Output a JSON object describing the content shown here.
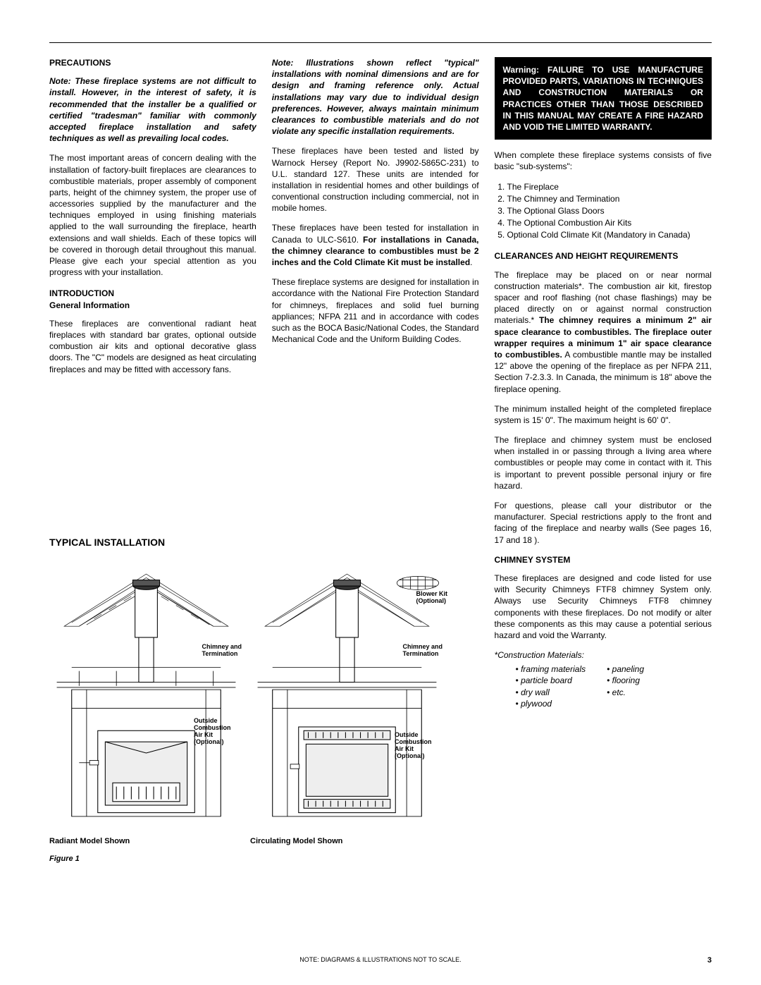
{
  "col1": {
    "precautions_heading": "PRECAUTIONS",
    "precautions_note": "Note: These fireplace systems are not difficult to install. However, in the interest of safety, it is recommended that the installer be a qualified or certified \"tradesman\" familiar with commonly accepted fireplace installation and safety techniques as well as prevailing local codes.",
    "precautions_body": "The most important areas of concern dealing with the installation of factory-built fireplaces are clearances to combustible materials, proper assembly of component parts, height of the chimney system, the proper use of accessories supplied by the manufacturer and the techniques employed in using finishing materials applied to the wall surrounding the fireplace, hearth extensions and wall shields. Each of these topics will be covered in thorough detail throughout this manual. Please give each your special attention as you progress with your installation.",
    "intro_heading_1": "INTRODUCTION",
    "intro_heading_2": "General Information",
    "intro_body": "These fireplaces are conventional radiant heat fireplaces with standard bar grates, optional outside combustion air kits and optional decorative glass doors. The \"C\" models are designed as heat circulating fireplaces and may be fitted with accessory fans."
  },
  "col2": {
    "note": "Note: Illustrations shown reflect \"typical\" installations with nominal dimensions and are for design and framing reference only. Actual installations may vary due to individual design preferences. However, always maintain minimum clearances to combustible materials and do not violate any specific installation requirements.",
    "p1": "These fireplaces have been tested and listed by Warnock Hersey (Report No. J9902-5865C-231) to U.L. standard 127. These units are intended for installation in residential homes and other buildings of conventional construction including commercial, not in mobile homes.",
    "p2_a": "These fireplaces have been tested for installation in Canada to ULC-S610. ",
    "p2_b": "For installations in Canada, the chimney clearance to combustibles must be 2 inches and the Cold Climate Kit must be installed",
    "p3": "These fireplace systems are designed for installation in accordance with the National Fire Protection Standard for chimneys, fireplaces and solid fuel burning appliances; NFPA 211 and in accordance with codes such as the BOCA Basic/National Codes, the Standard Mechanical Code and the Uniform Building Codes."
  },
  "col3": {
    "warning": "Warning: FAILURE TO USE MANUFACTURE PROVIDED PARTS, VARIATIONS IN TECHNIQUES AND CONSTRUCTION MATERIALS OR PRACTICES OTHER THAN THOSE DESCRIBED IN THIS MANUAL MAY CREATE A FIRE HAZARD AND VOID THE LIMITED WARRANTY.",
    "subsystems_intro": "When complete these fireplace systems consists of five basic \"sub-systems\":",
    "subsystems": [
      "The Fireplace",
      "The Chimney and Termination",
      "The Optional Glass Doors",
      "The Optional Combustion Air Kits",
      "Optional Cold Climate Kit (Mandatory in Canada)"
    ],
    "clearances_heading": "CLEARANCES AND HEIGHT REQUIREMENTS",
    "clearances_p1_a": "The fireplace may be placed on or near normal construction materials*. The combustion air kit, firestop spacer and roof flashing (not chase flashings) may be placed directly on or against normal construction materials.* ",
    "clearances_p1_b": "The chimney requires a minimum 2\" air space clearance to combustibles. The fireplace outer wrapper requires a minimum 1\" air space clearance to combustibles.",
    "clearances_p1_c": " A combustible mantle may be installed 12\" above the opening of the fireplace as per NFPA 211, Section 7-2.3.3. In Canada, the minimum is 18\" above the fireplace opening.",
    "clearances_p2": "The minimum installed height of the completed fireplace system is 15' 0\". The maximum height is 60' 0\".",
    "clearances_p3": "The fireplace and chimney system must be enclosed when installed in or passing through a living area where combustibles or people may come in contact with it. This is important to prevent possible personal injury or fire hazard.",
    "clearances_p4": "For questions, please call your distributor or the manufacturer. Special restrictions apply to the front and facing of the fireplace and nearby walls (See pages 16, 17 and 18 ).",
    "chimney_heading": "CHIMNEY SYSTEM",
    "chimney_p": "These fireplaces are designed and code listed for use with Security Chimneys FTF8 chimney System only. Always use Security Chimneys FTF8 chimney components with these fireplaces. Do not modify or alter these components as this may cause a potential serious hazard and void the Warranty.",
    "materials_label": "*Construction Materials:",
    "materials_col1": [
      "framing materials",
      "particle board",
      "dry wall",
      "plywood"
    ],
    "materials_col2": [
      "paneling",
      "flooring",
      "etc."
    ]
  },
  "diagram": {
    "title": "TYPICAL INSTALLATION",
    "blower_label": "Blower Kit\n(Optional)",
    "chimney_label": "Chimney and\nTermination",
    "air_kit_label": "Outside\nCombustion\nAir Kit\n(Optional)",
    "caption_left": "Radiant Model Shown",
    "caption_right": "Circulating Model Shown",
    "figure_label": "Figure 1"
  },
  "footer": {
    "note": "NOTE: DIAGRAMS & ILLUSTRATIONS NOT TO SCALE.",
    "page": "3"
  }
}
